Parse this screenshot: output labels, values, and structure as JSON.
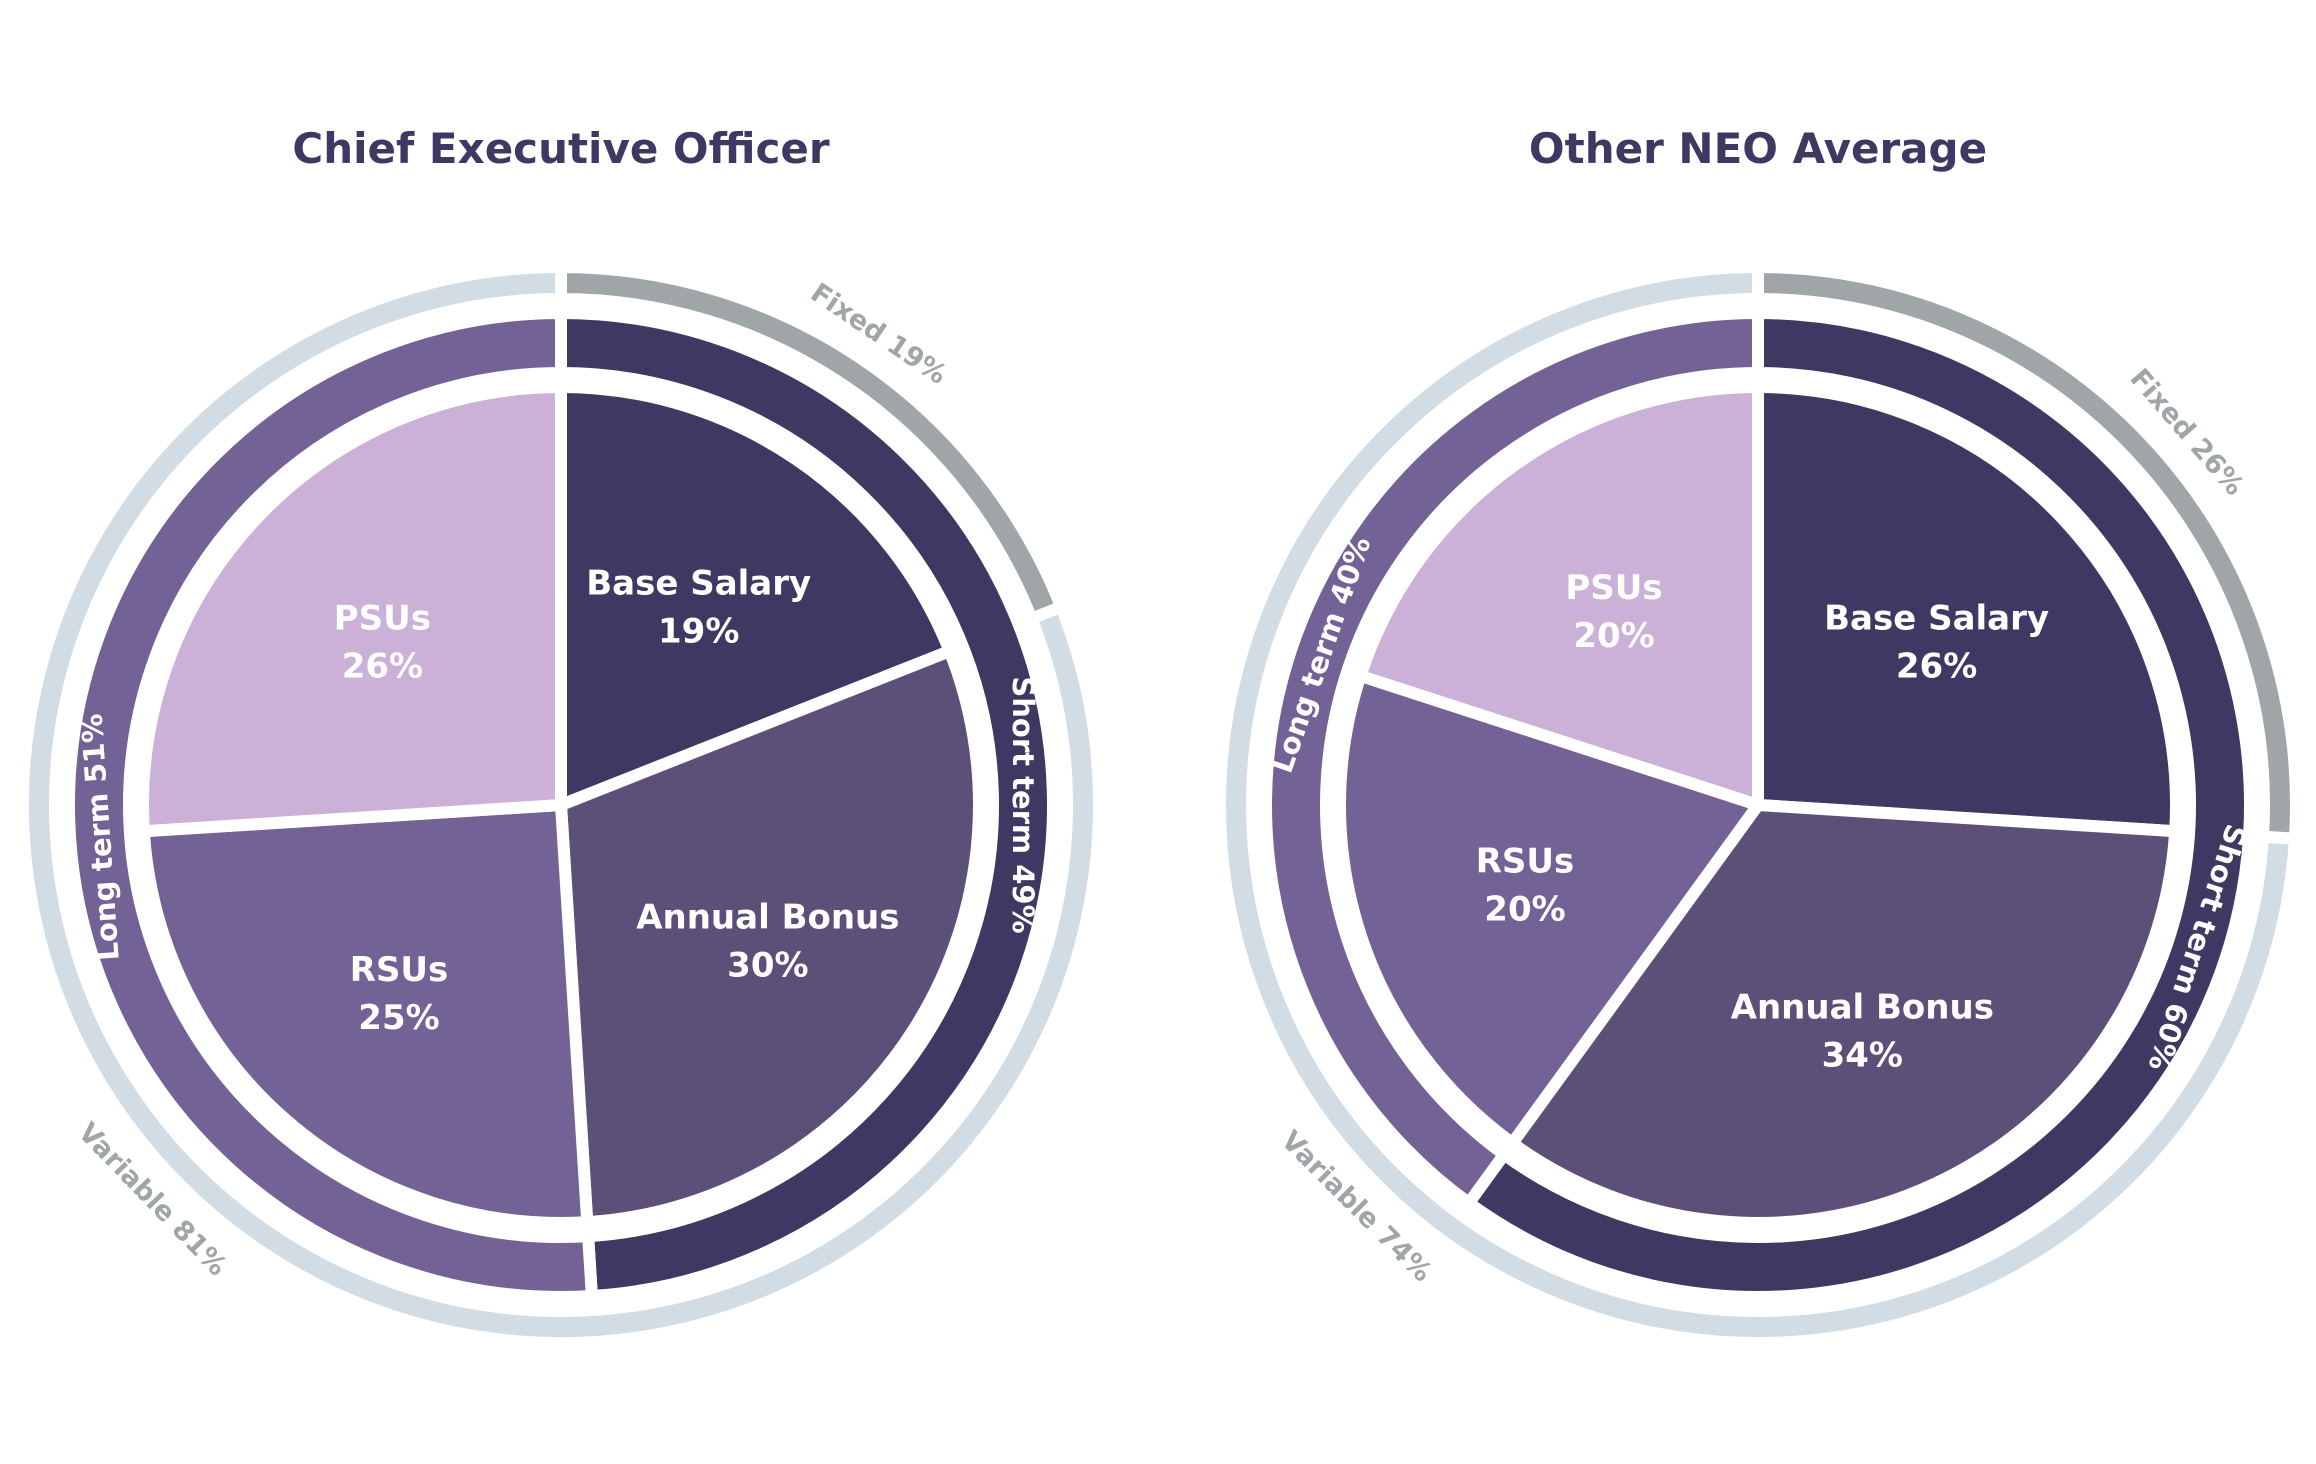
{
  "chart_data": [
    {
      "type": "pie",
      "title": "Chief Executive Officer",
      "slices": [
        {
          "label": "Base Salary",
          "value": 19,
          "value_label": "19%",
          "color": "#3f3862"
        },
        {
          "label": "Annual Bonus",
          "value": 30,
          "value_label": "30%",
          "color": "#5c5079"
        },
        {
          "label": "RSUs",
          "value": 25,
          "value_label": "25%",
          "color": "#736296"
        },
        {
          "label": "PSUs",
          "value": 26,
          "value_label": "26%",
          "color": "#cbb0d8"
        }
      ],
      "middle_ring": [
        {
          "label": "Short term 49%",
          "value": 49,
          "color": "#3f3862"
        },
        {
          "label": "Long term 51%",
          "value": 51,
          "color": "#736296"
        }
      ],
      "outer_ring": [
        {
          "label": "Fixed 19%",
          "value": 19,
          "color": "#a0a5a8"
        },
        {
          "label": "Variable 81%",
          "value": 81,
          "color": "#d2dce5"
        }
      ]
    },
    {
      "type": "pie",
      "title": "Other NEO Average",
      "slices": [
        {
          "label": "Base Salary",
          "value": 26,
          "value_label": "26%",
          "color": "#3f3862"
        },
        {
          "label": "Annual Bonus",
          "value": 34,
          "value_label": "34%",
          "color": "#5c5079"
        },
        {
          "label": "RSUs",
          "value": 20,
          "value_label": "20%",
          "color": "#736296"
        },
        {
          "label": "PSUs",
          "value": 20,
          "value_label": "20%",
          "color": "#cbb0d8"
        }
      ],
      "middle_ring": [
        {
          "label": "Short term 60%",
          "value": 60,
          "color": "#3f3862"
        },
        {
          "label": "Long term 40%",
          "value": 40,
          "color": "#736296"
        }
      ],
      "outer_ring": [
        {
          "label": "Fixed 26%",
          "value": 26,
          "color": "#a0a5a8"
        },
        {
          "label": "Variable 74%",
          "value": 74,
          "color": "#d2dce5"
        }
      ]
    }
  ]
}
